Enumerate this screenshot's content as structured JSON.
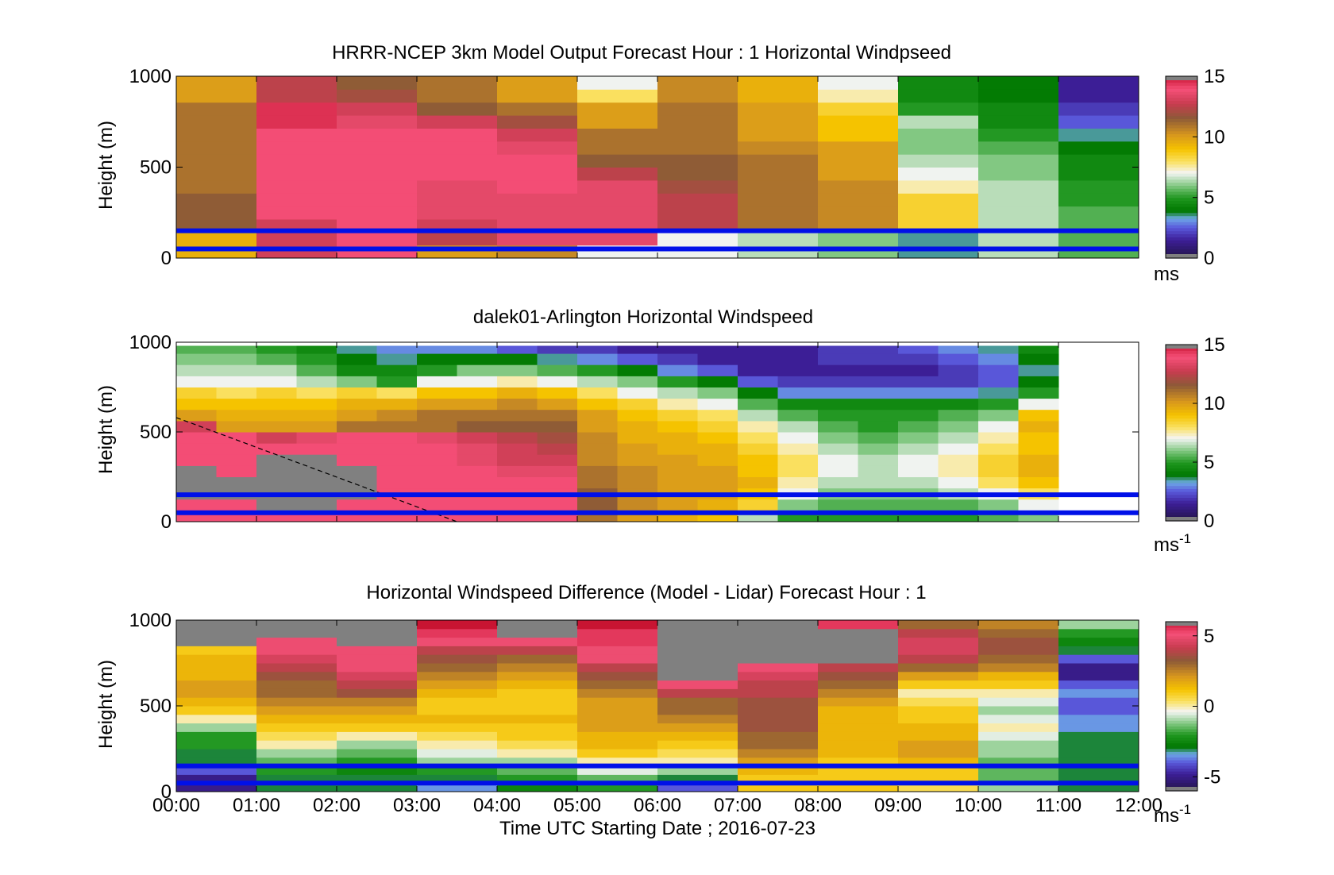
{
  "figure": {
    "xlabel": "Time UTC  Starting Date ; 2016-07-23",
    "x_tick_labels": [
      "00:00",
      "01:00",
      "02:00",
      "03:00",
      "04:00",
      "05:00",
      "06:00",
      "07:00",
      "08:00",
      "09:00",
      "10:00",
      "11:00",
      "12:00"
    ]
  },
  "chart_data": [
    {
      "type": "heatmap",
      "title": "HRRR-NCEP 3km Model Output   Forecast Hour : 1 Horizontal Windpseed",
      "ylabel": "Height (m)",
      "xlim": [
        0,
        12
      ],
      "ylim": [
        0,
        1000
      ],
      "y_ticks": [
        0,
        500,
        1000
      ],
      "colorbar": {
        "ticks": [
          0,
          5,
          10,
          15
        ],
        "unit": "ms",
        "unit_sup": "",
        "range": [
          0,
          15
        ]
      },
      "marker_lines_m": [
        150,
        50
      ],
      "columns": [
        {
          "t": 0,
          "speeds": [
            9.5,
            9.5,
            11.5,
            11.5,
            11.5,
            11,
            11,
            11,
            11,
            11,
            11,
            11,
            10,
            10
          ]
        },
        {
          "t": 1,
          "speeds": [
            13,
            13,
            13,
            14,
            14,
            14,
            14,
            14,
            14,
            14,
            14.5,
            14.5,
            12.5,
            12.5
          ]
        },
        {
          "t": 2,
          "speeds": [
            14,
            14,
            14,
            14,
            14,
            14,
            14,
            14,
            14,
            14,
            13.5,
            13,
            12,
            11.5
          ]
        },
        {
          "t": 3,
          "speeds": [
            10,
            12.5,
            13,
            13.5,
            13.5,
            13.5,
            14,
            14,
            14,
            14,
            13,
            11.5,
            11,
            11
          ]
        },
        {
          "t": 4,
          "speeds": [
            10.5,
            13.5,
            13.5,
            13.5,
            13.5,
            14,
            14,
            14,
            13.5,
            13,
            12,
            11,
            10,
            10
          ]
        },
        {
          "t": 5,
          "speeds": [
            7,
            13.5,
            13.5,
            13.5,
            13.5,
            13.5,
            12.5,
            11.5,
            11,
            11,
            10,
            10,
            8,
            7
          ]
        },
        {
          "t": 6,
          "speeds": [
            7,
            7,
            12.5,
            12.5,
            12.5,
            12,
            11.5,
            11.5,
            11,
            11,
            11,
            11,
            10.5,
            10.5
          ]
        },
        {
          "t": 7,
          "speeds": [
            6.5,
            6.5,
            11,
            11,
            11,
            11,
            11,
            11,
            10.5,
            10,
            10,
            10,
            9.5,
            9.5
          ]
        },
        {
          "t": 8,
          "speeds": [
            6,
            6,
            10.5,
            10.5,
            10.5,
            10.5,
            10,
            10,
            10,
            9,
            9,
            8.5,
            7.5,
            7
          ]
        },
        {
          "t": 9,
          "speeds": [
            3.5,
            3.5,
            8.5,
            8.5,
            8.5,
            7.5,
            7,
            6.5,
            6,
            6,
            6.5,
            5,
            4.5,
            4.5
          ]
        },
        {
          "t": 10,
          "speeds": [
            6.5,
            6.5,
            6.5,
            6.5,
            6.5,
            6.5,
            6,
            6,
            5.5,
            5,
            4.5,
            4.5,
            4,
            4
          ]
        },
        {
          "t": 11,
          "speeds": [
            5.5,
            5.5,
            5.5,
            5.5,
            5,
            5,
            4.5,
            4.5,
            4,
            3.5,
            2.5,
            2,
            1.5,
            1.5
          ]
        }
      ]
    },
    {
      "type": "heatmap",
      "title": "dalek01-Arlington  Horizontal Windspeed",
      "ylabel": "Height (m)",
      "xlim": [
        0,
        12
      ],
      "ylim": [
        0,
        1000
      ],
      "y_ticks": [
        0,
        500,
        1000
      ],
      "colorbar": {
        "ticks": [
          0,
          5,
          10,
          15
        ],
        "unit": "ms",
        "unit_sup": "-1",
        "range": [
          0,
          15
        ]
      },
      "marker_lines_m": [
        150,
        50
      ],
      "dashed_line": {
        "from": [
          0,
          580
        ],
        "to": [
          3.5,
          0
        ]
      },
      "data_end_hour": 10.8,
      "columns": [
        {
          "t": 0.0,
          "speeds": [
            14,
            14,
            0,
            0,
            0,
            14,
            14,
            14,
            13,
            10,
            9,
            8.5,
            7,
            6.5,
            6,
            5.5
          ]
        },
        {
          "t": 0.5,
          "speeds": [
            14,
            14,
            0,
            0,
            14,
            14,
            14,
            14,
            10,
            9.5,
            9,
            8,
            7,
            6.5,
            6,
            5.5
          ]
        },
        {
          "t": 1.0,
          "speeds": [
            14,
            0,
            0,
            0,
            0,
            0,
            14,
            13,
            10,
            9.5,
            9,
            8.5,
            7,
            6.5,
            5.5,
            5
          ]
        },
        {
          "t": 1.5,
          "speeds": [
            14,
            0,
            0,
            0,
            0,
            0,
            14,
            13.5,
            10,
            9.5,
            9,
            8,
            6.5,
            5.5,
            5,
            4.5
          ]
        },
        {
          "t": 2.0,
          "speeds": [
            14,
            14,
            0,
            0,
            0,
            14,
            14,
            14,
            11,
            10,
            9.5,
            8.5,
            6,
            4.5,
            4,
            3.5
          ]
        },
        {
          "t": 2.5,
          "speeds": [
            14,
            14,
            14,
            14,
            14,
            14,
            14,
            14,
            11,
            10.5,
            9.5,
            8,
            5,
            4.5,
            3.5,
            3
          ]
        },
        {
          "t": 3.0,
          "speeds": [
            14,
            14,
            14,
            14,
            14,
            14,
            14,
            13.5,
            11,
            11,
            10,
            9,
            7,
            5,
            4,
            3
          ]
        },
        {
          "t": 3.5,
          "speeds": [
            14,
            14,
            14,
            14,
            14,
            13.5,
            13.5,
            13,
            11.5,
            11,
            10,
            9,
            7,
            6,
            4,
            3
          ]
        },
        {
          "t": 4.0,
          "speeds": [
            14,
            14,
            14,
            14,
            13.5,
            13,
            13,
            12.5,
            11.5,
            11,
            10.5,
            9.5,
            7.5,
            6,
            4,
            2.5
          ]
        },
        {
          "t": 4.5,
          "speeds": [
            14,
            14,
            14,
            14,
            13.5,
            13,
            12.5,
            12,
            11.5,
            11,
            10,
            9,
            7,
            5.5,
            3.5,
            2
          ]
        },
        {
          "t": 5.0,
          "speeds": [
            11,
            11.5,
            11.5,
            11,
            11,
            10.5,
            10.5,
            10.5,
            10,
            10,
            9,
            8,
            6.5,
            5,
            3,
            2
          ]
        },
        {
          "t": 5.5,
          "speeds": [
            10,
            10.5,
            10.5,
            10.5,
            10.5,
            10,
            10,
            9.5,
            9.5,
            9,
            8.5,
            7,
            6,
            4,
            2.5,
            1.5
          ]
        },
        {
          "t": 6.0,
          "speeds": [
            9.5,
            10,
            10,
            10,
            10,
            10,
            9.5,
            9.5,
            9,
            8.5,
            7.5,
            6.5,
            5,
            3,
            2,
            1.5
          ]
        },
        {
          "t": 6.5,
          "speeds": [
            9,
            9.5,
            10,
            10,
            10,
            9.5,
            9.5,
            9,
            8.5,
            8,
            7,
            6,
            4,
            2.5,
            1.5,
            1.5
          ]
        },
        {
          "t": 7.0,
          "speeds": [
            6.5,
            8.5,
            9,
            9.5,
            9,
            9,
            8.5,
            8,
            7.5,
            6.5,
            5.5,
            4,
            2.5,
            1.5,
            1.5,
            1.5
          ]
        },
        {
          "t": 7.5,
          "speeds": [
            5,
            6,
            7,
            7.5,
            8,
            8,
            7.5,
            7,
            6.5,
            5.5,
            4.5,
            3,
            2,
            1.5,
            1.5,
            1.5
          ]
        },
        {
          "t": 8.0,
          "speeds": [
            5,
            5.5,
            6,
            6.5,
            7,
            7,
            6.5,
            6,
            5.5,
            5,
            4.5,
            3,
            2,
            1.5,
            2,
            2
          ]
        },
        {
          "t": 8.5,
          "speeds": [
            5,
            5.5,
            6,
            6.5,
            6.5,
            6.5,
            6,
            5.5,
            5,
            5,
            4.5,
            3,
            2,
            1.5,
            2,
            2
          ]
        },
        {
          "t": 9.0,
          "speeds": [
            5,
            5.5,
            6,
            6.5,
            7,
            7,
            6.5,
            6,
            5.5,
            5,
            4.5,
            3,
            2,
            1.5,
            2,
            2.5
          ]
        },
        {
          "t": 9.5,
          "speeds": [
            5,
            5.5,
            6.5,
            7,
            7.5,
            7.5,
            7,
            6.5,
            6,
            5.5,
            4.5,
            3,
            2,
            2,
            2.5,
            3
          ]
        },
        {
          "t": 10.0,
          "speeds": [
            5.5,
            6,
            7,
            8,
            8.5,
            8.5,
            8,
            7.5,
            7,
            6,
            5,
            3.5,
            2.5,
            2.5,
            3,
            3.5
          ]
        },
        {
          "t": 10.5,
          "speeds": [
            6,
            7,
            8,
            9,
            9.5,
            9.5,
            9,
            9,
            9.5,
            9,
            7,
            5,
            4,
            3.5,
            4,
            4.5
          ]
        }
      ]
    },
    {
      "type": "heatmap",
      "title": "Horizontal Windspeed Difference (Model - Lidar) Forecast Hour : 1",
      "ylabel": "Height (m)",
      "xlim": [
        0,
        12
      ],
      "ylim": [
        0,
        1000
      ],
      "y_ticks": [
        0,
        500,
        1000
      ],
      "colorbar": {
        "ticks": [
          -5,
          0,
          5
        ],
        "unit": "ms",
        "unit_sup": "-1",
        "range": [
          -6,
          6
        ]
      },
      "marker_lines_m": [
        150,
        50
      ],
      "columns": [
        {
          "t": 0,
          "diffs": [
            -5,
            -5,
            -4,
            -3,
            -3,
            -2,
            -2,
            -1,
            0,
            1,
            1.5,
            2,
            2,
            1.5,
            1.5,
            1.5,
            1,
            null,
            null,
            null
          ]
        },
        {
          "t": 1,
          "diffs": [
            -3,
            -3,
            -2,
            -1.5,
            -1,
            0,
            0.5,
            1,
            1.5,
            2,
            2.5,
            3,
            3,
            3.5,
            4,
            4.5,
            5,
            5,
            null,
            null
          ]
        },
        {
          "t": 2,
          "diffs": [
            -3,
            -3,
            -2.5,
            -2,
            -1.5,
            -1,
            0,
            1,
            1.5,
            2,
            2.5,
            3.5,
            4,
            4.5,
            5,
            5,
            5,
            null,
            null,
            null
          ]
        },
        {
          "t": 3,
          "diffs": [
            -3.5,
            -3,
            -2,
            -1,
            -0.5,
            0,
            0.5,
            1,
            1.5,
            1,
            1,
            1.5,
            2,
            2.5,
            3,
            3.5,
            4,
            5,
            5.5,
            6
          ]
        },
        {
          "t": 4,
          "diffs": [
            -2.5,
            -2,
            -1.5,
            -1,
            0,
            0.5,
            1,
            1,
            1.5,
            1,
            1,
            1,
            1.5,
            2,
            2.5,
            3,
            4,
            5,
            null,
            null
          ]
        },
        {
          "t": 5,
          "diffs": [
            -2,
            -1.5,
            -0.5,
            0,
            1,
            1.5,
            1.5,
            2,
            2,
            2,
            2,
            2.5,
            3,
            3.5,
            4,
            5,
            5,
            5.5,
            5.5,
            6
          ]
        },
        {
          "t": 6,
          "diffs": [
            -4,
            -3,
            -1,
            0,
            0.5,
            1,
            1.5,
            2,
            2.5,
            3,
            3,
            4,
            5,
            null,
            null,
            null,
            null,
            null,
            null,
            null
          ]
        },
        {
          "t": 7,
          "diffs": [
            1,
            1,
            1.5,
            2,
            2.5,
            3,
            3,
            3.5,
            3.5,
            3.5,
            3.5,
            4,
            4,
            4.5,
            5,
            null,
            null,
            null,
            null,
            null
          ]
        },
        {
          "t": 8,
          "diffs": [
            1,
            1,
            1,
            1,
            1.5,
            1.5,
            1.5,
            1.5,
            1.5,
            1.5,
            2,
            2.5,
            3,
            3.5,
            4,
            null,
            null,
            null,
            null,
            5.5
          ]
        },
        {
          "t": 9,
          "diffs": [
            0.5,
            1,
            1,
            1.5,
            2,
            2,
            1.5,
            1.5,
            1,
            1,
            0.5,
            0,
            1,
            2,
            3,
            4,
            4.5,
            4.5,
            4,
            3
          ]
        },
        {
          "t": 10,
          "diffs": [
            -1,
            -1.5,
            -1.5,
            -1.5,
            -1,
            -1,
            -0.5,
            0,
            -0.5,
            -1,
            -0.5,
            0,
            1,
            1.5,
            2.5,
            3,
            3.5,
            3.5,
            3,
            2.5
          ]
        },
        {
          "t": 11,
          "diffs": [
            -3,
            -3,
            -3,
            -3,
            -3,
            -3,
            -3,
            -3.5,
            -3.5,
            -4,
            -4,
            -3.5,
            -4,
            -5,
            -5,
            -4,
            -3,
            -2.5,
            -2,
            -1
          ]
        }
      ]
    }
  ]
}
